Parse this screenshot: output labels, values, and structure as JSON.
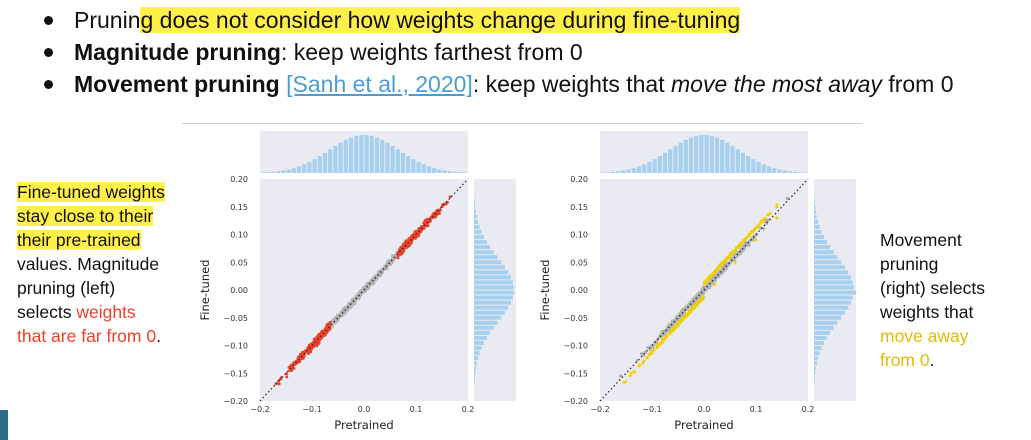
{
  "bullets": [
    {
      "pre": "Prunin",
      "highlight": "g does not consider how weights change during fine-tuning"
    },
    {
      "bold": "Magnitude pruning",
      "rest": ": keep weights farthest from 0"
    },
    {
      "bold": "Movement pruning",
      "space": " ",
      "link": "[Sanh et al., 2020]",
      "rest1": ": keep weights that ",
      "italic": "move the most away",
      "rest2": " from 0"
    }
  ],
  "left_note": {
    "hl1": "Fine-tuned weights",
    "hl2": "stay close to their",
    "hl3": "their pre-trained",
    "line4": "values. Magnitude",
    "line5": "pruning (left)",
    "line6": "selects ",
    "red1": "weights",
    "red2": "that are far from 0",
    "end": "."
  },
  "right_note": {
    "line1": "Movement",
    "line2": "pruning",
    "line3": "(right) selects",
    "line4": "weights that",
    "gold1": "move away",
    "gold2": "from 0",
    "end": "."
  },
  "chart_data": [
    {
      "type": "scatter",
      "xlabel": "Pretrained",
      "ylabel": "Fine-tuned",
      "xlim": [
        -0.2,
        0.2
      ],
      "ylim": [
        -0.2,
        0.2
      ],
      "xticks": [
        "−0.2",
        "−0.1",
        "0.0",
        "0.1",
        "0.2"
      ],
      "yticks": [
        "0.20",
        "0.15",
        "0.10",
        "0.05",
        "0.00",
        "−0.05",
        "−0.10",
        "−0.15",
        "−0.20"
      ],
      "series": [
        {
          "color": "#aaaaaa",
          "x": [
            -0.06,
            -0.05,
            -0.04,
            -0.03,
            -0.02,
            -0.01,
            0.0,
            0.01,
            0.02,
            0.03,
            0.04,
            0.05,
            0.06
          ],
          "y": [
            -0.055,
            -0.052,
            -0.038,
            -0.032,
            -0.018,
            -0.012,
            0.002,
            0.012,
            0.018,
            0.033,
            0.038,
            0.052,
            0.058
          ]
        },
        {
          "color": "#e8432a",
          "x": [
            -0.16,
            -0.14,
            -0.12,
            -0.1,
            -0.08,
            -0.07,
            0.07,
            0.08,
            0.1,
            0.12,
            0.14,
            0.16
          ],
          "y": [
            -0.16,
            -0.138,
            -0.122,
            -0.1,
            -0.082,
            -0.068,
            0.072,
            0.08,
            0.102,
            0.118,
            0.142,
            0.158
          ]
        }
      ],
      "diagonal": true
    },
    {
      "type": "scatter",
      "xlabel": "Pretrained",
      "ylabel": "Fine-tuned",
      "xlim": [
        -0.2,
        0.2
      ],
      "ylim": [
        -0.2,
        0.2
      ],
      "xticks": [
        "−0.2",
        "−0.1",
        "0.0",
        "0.1",
        "0.2"
      ],
      "yticks": [
        "0.20",
        "0.15",
        "0.10",
        "0.05",
        "0.00",
        "−0.05",
        "−0.10",
        "−0.15",
        "−0.20"
      ],
      "series": [
        {
          "color": "#aaaaaa",
          "x": [
            -0.16,
            -0.12,
            -0.08,
            -0.04,
            0.0,
            0.04,
            0.08,
            0.12,
            0.16
          ],
          "y": [
            -0.155,
            -0.115,
            -0.075,
            -0.035,
            0.005,
            0.045,
            0.085,
            0.125,
            0.165
          ]
        },
        {
          "color": "#f2d000",
          "x": [
            -0.14,
            -0.1,
            -0.06,
            -0.02,
            0.02,
            0.06,
            0.1,
            0.14
          ],
          "y": [
            -0.15,
            -0.11,
            -0.07,
            -0.03,
            0.01,
            0.05,
            0.09,
            0.13
          ]
        }
      ],
      "diagonal": true
    }
  ],
  "colors": {
    "highlight": "#fff04a",
    "link": "#4c9bd3",
    "red": "#e8432a",
    "gold": "#e2b90b",
    "hist": "#a6d0ee",
    "axes_bg": "#eaeaf2"
  }
}
